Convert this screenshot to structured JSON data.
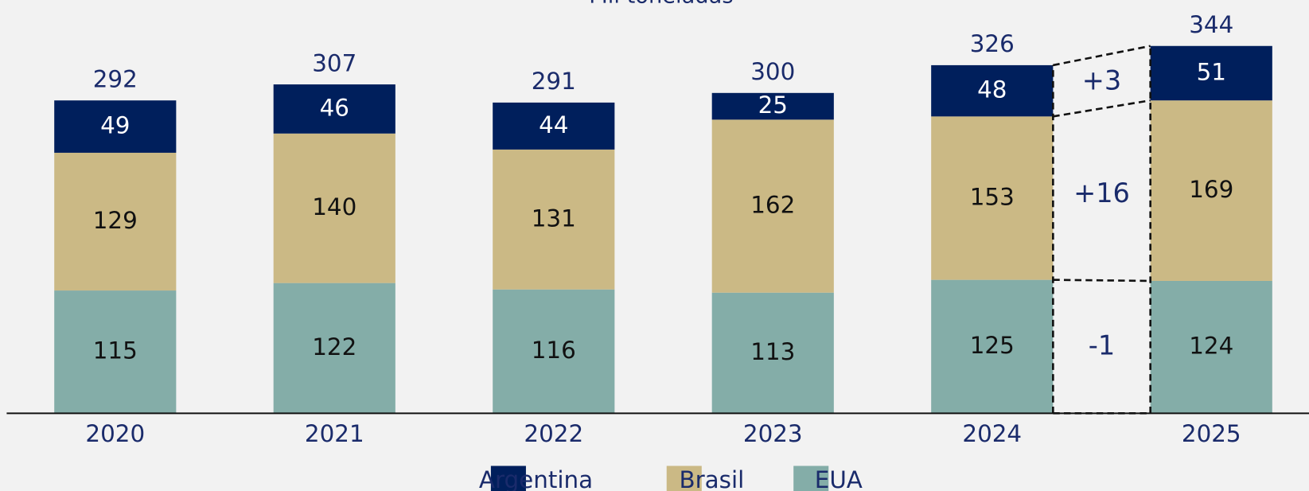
{
  "chart_data": {
    "type": "stacked-bar",
    "subtitle": "Mil toneladas",
    "categories": [
      "2020",
      "2021",
      "2022",
      "2023",
      "2024",
      "2025"
    ],
    "series": [
      {
        "name": "Argentina",
        "color": "#001f5c",
        "values": [
          49,
          46,
          44,
          25,
          48,
          51
        ]
      },
      {
        "name": "Brasil",
        "color": "#cbb985",
        "values": [
          129,
          140,
          131,
          162,
          153,
          169
        ]
      },
      {
        "name": "EUA",
        "color": "#84ada8",
        "values": [
          115,
          122,
          116,
          113,
          125,
          124
        ]
      }
    ],
    "totals": [
      292,
      307,
      291,
      300,
      326,
      344
    ],
    "changes": [
      "+3",
      "+16",
      "-1"
    ],
    "ylim": [
      0,
      387
    ]
  }
}
